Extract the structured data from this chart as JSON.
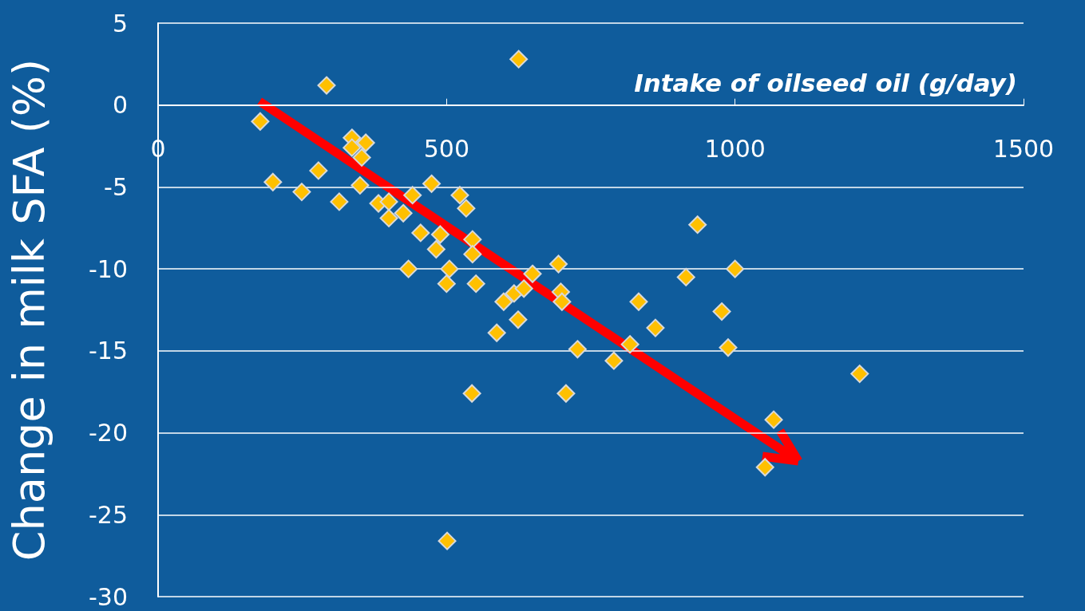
{
  "chart_data": {
    "type": "scatter",
    "xlabel": "Intake of oilseed oil (g/day)",
    "ylabel": "Change in milk SFA (%)",
    "x": [
      177,
      292,
      199,
      249,
      278,
      314,
      336,
      336,
      360,
      353,
      350,
      382,
      400,
      400,
      425,
      441,
      434,
      455,
      474,
      482,
      489,
      523,
      534,
      545,
      545,
      505,
      500,
      551,
      544,
      501,
      587,
      599,
      617,
      634,
      624,
      625,
      649,
      694,
      698,
      700,
      707,
      727,
      790,
      818,
      833,
      862,
      915,
      935,
      977,
      988,
      1000,
      1067,
      1052,
      1216
    ],
    "values": [
      -1.0,
      1.2,
      -4.7,
      -5.3,
      -4.0,
      -5.9,
      -2.0,
      -2.6,
      -2.3,
      -3.2,
      -4.9,
      -6.0,
      -5.9,
      -6.9,
      -6.6,
      -5.5,
      -10.0,
      -7.8,
      -4.8,
      -8.8,
      -7.9,
      -5.5,
      -6.3,
      -8.2,
      -9.1,
      -10.0,
      -10.9,
      -10.9,
      -17.6,
      -26.6,
      -13.9,
      -12.0,
      -11.5,
      -11.2,
      -13.1,
      2.8,
      -10.3,
      -9.7,
      -11.4,
      -12.0,
      -17.6,
      -14.9,
      -15.6,
      -14.6,
      -12.0,
      -13.6,
      -10.5,
      -7.3,
      -12.6,
      -14.8,
      -10.0,
      -19.2,
      -22.1,
      -16.4
    ],
    "color": "#ffc000",
    "marker": "diamond",
    "xlim": [
      0,
      1500
    ],
    "xticks": [
      0,
      500,
      1000,
      1500
    ],
    "ylim": [
      -30,
      5
    ],
    "yticks": [
      -30,
      -25,
      -20,
      -15,
      -10,
      -5,
      0,
      5
    ],
    "grid": "y"
  }
}
